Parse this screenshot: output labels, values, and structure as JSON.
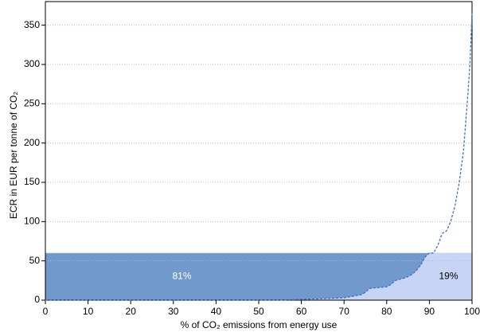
{
  "chart_data": {
    "type": "line",
    "x_label": "% of CO₂ emissions from energy use",
    "y_label": "ECR in EUR per tonne of CO₂",
    "x": [
      0,
      55,
      60,
      65,
      70,
      72,
      74,
      75,
      76,
      78,
      80,
      81,
      82,
      84,
      85,
      86,
      87,
      88,
      89,
      90,
      91,
      92,
      93,
      94,
      95,
      96,
      97,
      98,
      99,
      99.5,
      100
    ],
    "series": [
      {
        "color": "#3b6fc6",
        "values": [
          0,
          0,
          1,
          2,
          3,
          5,
          7,
          10,
          15,
          16,
          17,
          20,
          25,
          28,
          30,
          33,
          38,
          45,
          55,
          60,
          60,
          70,
          85,
          88,
          100,
          120,
          150,
          190,
          260,
          300,
          365
        ]
      }
    ],
    "threshold": 60,
    "above_color": "#7299cc",
    "below_color": "#c6d5f5",
    "annotations": [
      "81%",
      "19%"
    ],
    "xlim": [
      0,
      100
    ],
    "xticks": [
      0,
      10,
      20,
      30,
      40,
      50,
      60,
      70,
      80,
      90,
      100
    ],
    "ylim": [
      0,
      380
    ],
    "yticks": [
      0,
      50,
      100,
      150,
      200,
      250,
      300,
      350
    ],
    "grid": true
  }
}
